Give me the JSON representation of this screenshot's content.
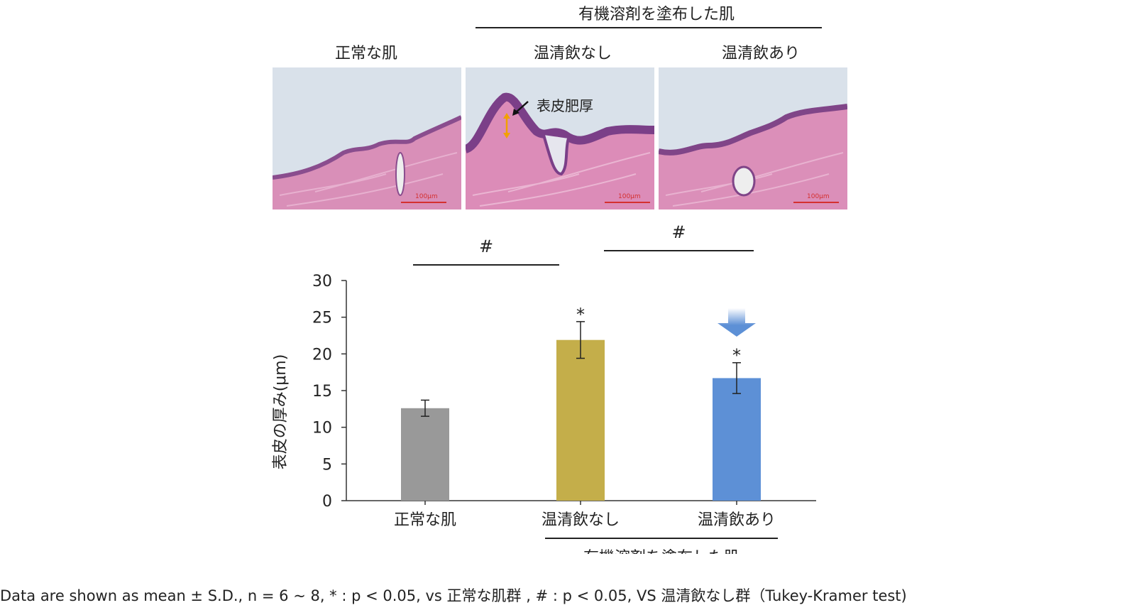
{
  "figure": {
    "group_header": "有機溶剤を塗布した肌",
    "panel_labels": [
      "正常な肌",
      "温清飲なし",
      "温清飲あり"
    ],
    "scale_bar_label": "100μm",
    "annotation": "表皮肥厚",
    "footer": "Data are shown as mean ± S.D., n = 6 ~ 8, * : p < 0.05, vs 正常な肌群 , # : p < 0.05, VS 温清飲なし群（Tukey-Kramer test)"
  },
  "chart_data": {
    "type": "bar",
    "categories": [
      "正常な肌",
      "温清飲なし",
      "温清飲あり"
    ],
    "values": [
      12.6,
      21.9,
      16.7
    ],
    "errors": [
      1.1,
      2.5,
      2.1
    ],
    "colors": [
      "#999999",
      "#c4ae4a",
      "#5d90d6"
    ],
    "ylabel": "表皮の厚み(μm)",
    "ylim": [
      0,
      30
    ],
    "yticks": [
      0,
      5,
      10,
      15,
      20,
      25,
      30
    ],
    "group_label": "有機溶剤を塗布した肌",
    "significance_star": "*",
    "significance_hash": "#",
    "stars_on": [
      "温清飲なし",
      "温清飲あり"
    ],
    "hash_brackets": [
      [
        "正常な肌",
        "温清飲なし"
      ],
      [
        "温清飲なし",
        "温清飲あり"
      ]
    ],
    "arrow_color": "#5d90d6"
  }
}
